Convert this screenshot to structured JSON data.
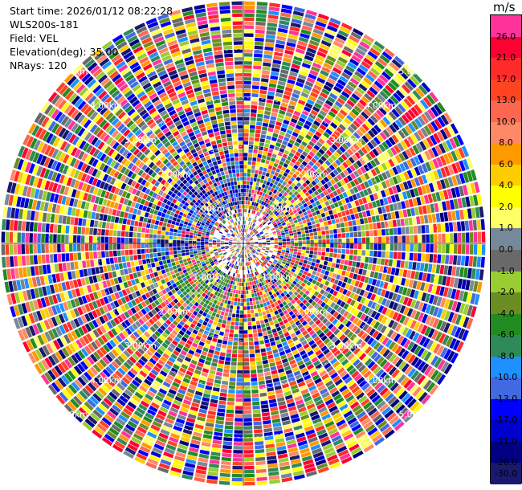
{
  "info": {
    "start_time": "Start time: 2026/01/12 08:22:28",
    "instrument": "WLS200s-181",
    "field": "Field: VEL",
    "elevation": "Elevation(deg): 35.00",
    "nrays": "NRays: 120"
  },
  "colorbar": {
    "unit": "m/s",
    "levels": [
      {
        "label": "26.0",
        "color": "#ff3399"
      },
      {
        "label": "21.0",
        "color": "#ff0033"
      },
      {
        "label": "17.0",
        "color": "#ff2a2a"
      },
      {
        "label": "13.0",
        "color": "#ff4422"
      },
      {
        "label": "10.0",
        "color": "#ff6650"
      },
      {
        "label": "8.0",
        "color": "#ff8866"
      },
      {
        "label": "6.0",
        "color": "#ff9900"
      },
      {
        "label": "4.0",
        "color": "#ffcc00"
      },
      {
        "label": "2.0",
        "color": "#ffff00"
      },
      {
        "label": "1.0",
        "color": "#ffff66"
      },
      {
        "label": "0.0",
        "color": "#778899"
      },
      {
        "label": "-1.0",
        "color": "#696969"
      },
      {
        "label": "-2.0",
        "color": "#9acd32"
      },
      {
        "label": "-4.0",
        "color": "#6b8e23"
      },
      {
        "label": "-6.0",
        "color": "#228b22"
      },
      {
        "label": "-8.0",
        "color": "#2e8b57"
      },
      {
        "label": "-10.0",
        "color": "#1e90ff"
      },
      {
        "label": "-13.0",
        "color": "#4169e1"
      },
      {
        "label": "-17.0",
        "color": "#0000ff"
      },
      {
        "label": "-21.0",
        "color": "#0000cd"
      },
      {
        "label": "-26.0",
        "color": "#000080"
      },
      {
        "label": "-30.0",
        "color": "#191970"
      }
    ]
  },
  "chart_data": {
    "type": "heatmap",
    "projection": "polar-ppi",
    "field": "VEL",
    "nrays": 120,
    "range_rings_km": [
      1,
      2,
      3,
      4,
      5
    ],
    "ring_labels": {
      "1": "1.00km",
      "2": "2.00km",
      "3": "3.00km",
      "4": "4.00km",
      "5": "5.00km"
    },
    "max_range_km": 5.0,
    "colorbar_range": [
      -30.0,
      26.0
    ],
    "grid": true,
    "colorbar_position": "right"
  }
}
